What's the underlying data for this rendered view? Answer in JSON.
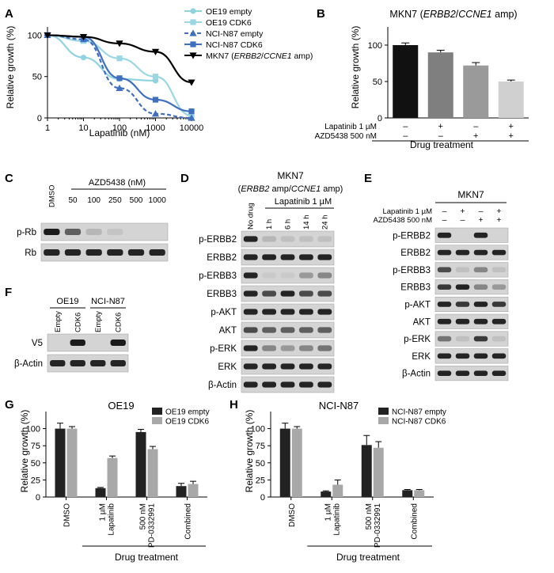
{
  "panels": {
    "A": {
      "letter": "A",
      "legend": [
        "OE19 empty",
        "OE19 CDK6",
        "NCI-N87 empty",
        "NCI-N87 CDK6",
        "MKN7 (ERBB2/CCNE1 amp)"
      ],
      "colors": {
        "OE19 empty": "#8fd3e0",
        "OE19 CDK6": "#9ad7e3",
        "NCI-N87 empty": "#3f6fc0",
        "NCI-N87 CDK6": "#3f6fc0",
        "MKN7": "#000000"
      }
    },
    "B": {
      "letter": "B",
      "title": "MKN7 (ERBB2/CCNE1 amp)",
      "treat_rows": [
        {
          "label": "Lapatinib 1 µM",
          "marks": [
            "–",
            "+",
            "–",
            "+"
          ]
        },
        {
          "label": "AZD5438 500 nM",
          "marks": [
            "–",
            "–",
            "+",
            "+"
          ]
        }
      ],
      "xlabel": "Drug treatment"
    },
    "C": {
      "letter": "C",
      "drug_label": "AZD5438 (nM)",
      "lanes": [
        "DMSO",
        "50",
        "100",
        "250",
        "500",
        "1000"
      ],
      "rows": [
        "p-Rb",
        "Rb"
      ]
    },
    "D": {
      "letter": "D",
      "title1": "MKN7",
      "title2": "(ERBB2 amp/CCNE1 amp)",
      "drug_label": "Lapatinib 1 µM",
      "lanes": [
        "No drug",
        "1 h",
        "6 h",
        "14 h",
        "24 h"
      ],
      "rows": [
        "p-ERBB2",
        "ERBB2",
        "p-ERBB3",
        "ERBB3",
        "p-AKT",
        "AKT",
        "p-ERK",
        "ERK",
        "β-Actin"
      ]
    },
    "E": {
      "letter": "E",
      "title": "MKN7",
      "treat_rows": [
        {
          "label": "Lapatinib 1 µM",
          "marks": [
            "–",
            "+",
            "–",
            "+"
          ]
        },
        {
          "label": "AZD5438 500 nM",
          "marks": [
            "–",
            "–",
            "+",
            "+"
          ]
        }
      ],
      "rows": [
        "p-ERBB2",
        "ERBB2",
        "p-ERBB3",
        "ERBB3",
        "p-AKT",
        "AKT",
        "p-ERK",
        "ERK",
        "β-Actin"
      ]
    },
    "F": {
      "letter": "F",
      "groups": [
        "OE19",
        "NCI-N87"
      ],
      "lanes": [
        "Empty",
        "CDK6",
        "Empty",
        "CDK6"
      ],
      "rows": [
        "V5",
        "β-Actin"
      ]
    },
    "G": {
      "letter": "G",
      "title": "OE19"
    },
    "H": {
      "letter": "H",
      "title": "NCI-N87"
    }
  },
  "chart_data": [
    {
      "panel": "A",
      "type": "line",
      "xscale": "log",
      "xlabel": "Lapatinib (nM)",
      "ylabel": "Relative growth (%)",
      "xticks": [
        1,
        10,
        100,
        1000,
        10000
      ],
      "yticks": [
        0,
        50,
        100
      ],
      "ylim": [
        0,
        110
      ],
      "xlim": [
        1,
        10000
      ],
      "legend_position": "top-right",
      "series": [
        {
          "name": "OE19 empty",
          "style": "solid",
          "marker": "circle",
          "x": [
            1,
            10,
            100,
            1000
          ],
          "y": [
            100,
            73,
            47,
            45
          ]
        },
        {
          "name": "OE19 CDK6",
          "style": "solid",
          "marker": "square",
          "x": [
            1,
            10,
            100,
            1000,
            10000
          ],
          "y": [
            100,
            93,
            72,
            50,
            3
          ]
        },
        {
          "name": "NCI-N87 empty",
          "style": "dashed",
          "marker": "triangle",
          "x": [
            1,
            10,
            100,
            1000,
            10000
          ],
          "y": [
            100,
            95,
            36,
            5,
            0
          ]
        },
        {
          "name": "NCI-N87 CDK6",
          "style": "solid",
          "marker": "square",
          "x": [
            1,
            10,
            100,
            1000,
            10000
          ],
          "y": [
            100,
            98,
            48,
            22,
            8
          ]
        },
        {
          "name": "MKN7 (ERBB2/CCNE1 amp)",
          "style": "solid",
          "marker": "inverted-triangle",
          "x": [
            1,
            10,
            100,
            1000,
            10000
          ],
          "y": [
            100,
            98,
            90,
            80,
            43
          ]
        }
      ]
    },
    {
      "panel": "B",
      "type": "bar",
      "title": "MKN7 (ERBB2/CCNE1 amp)",
      "ylabel": "Relative growth (%)",
      "xlabel": "Drug treatment",
      "yticks": [
        0,
        50,
        100
      ],
      "ylim": [
        0,
        125
      ],
      "values": [
        100,
        90,
        72,
        50
      ],
      "errors": [
        3,
        3,
        4,
        2
      ],
      "colors": [
        "#111111",
        "#7f7f7f",
        "#9a9a9a",
        "#d0d0d0"
      ]
    },
    {
      "panel": "G",
      "type": "bar",
      "title": "OE19",
      "ylabel": "Relative growth (%)",
      "xlabel": "Drug treatment",
      "categories": [
        "DMSO",
        "1 µM Lapatinib",
        "500 nM PD-0332991",
        "Combined"
      ],
      "yticks": [
        0,
        25,
        50,
        75,
        100
      ],
      "ylim": [
        0,
        125
      ],
      "legend_position": "top-right",
      "series": [
        {
          "name": "OE19 empty",
          "color": "#222222",
          "values": [
            100,
            13,
            95,
            16
          ],
          "errors": [
            8,
            1,
            4,
            4
          ]
        },
        {
          "name": "OE19 CDK6",
          "color": "#a8a8a8",
          "values": [
            100,
            57,
            70,
            19
          ],
          "errors": [
            3,
            3,
            4,
            4
          ]
        }
      ]
    },
    {
      "panel": "H",
      "type": "bar",
      "title": "NCI-N87",
      "ylabel": "Relative growth (%)",
      "xlabel": "Drug treatment",
      "categories": [
        "DMSO",
        "1 µM Lapatinib",
        "500 nM PD-0332991",
        "Combined"
      ],
      "yticks": [
        0,
        25,
        50,
        75,
        100
      ],
      "ylim": [
        0,
        125
      ],
      "legend_position": "top-right",
      "series": [
        {
          "name": "NCI-N87 empty",
          "color": "#222222",
          "values": [
            100,
            8,
            76,
            10
          ],
          "errors": [
            8,
            1,
            14,
            1
          ]
        },
        {
          "name": "NCI-N87 CDK6",
          "color": "#a8a8a8",
          "values": [
            100,
            18,
            72,
            10
          ],
          "errors": [
            3,
            7,
            9,
            1
          ]
        }
      ]
    }
  ]
}
